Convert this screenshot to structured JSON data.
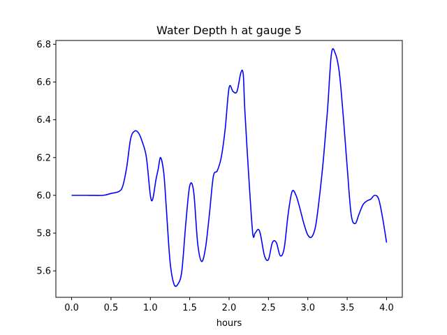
{
  "chart_data": {
    "type": "line",
    "title": "Water Depth h at gauge 5",
    "xlabel": "hours",
    "ylabel": "",
    "xlim": [
      -0.2,
      4.2
    ],
    "ylim": [
      5.46,
      6.82
    ],
    "xticks": [
      0.0,
      0.5,
      1.0,
      1.5,
      2.0,
      2.5,
      3.0,
      3.5,
      4.0
    ],
    "xtick_labels": [
      "0.0",
      "0.5",
      "1.0",
      "1.5",
      "2.0",
      "2.5",
      "3.0",
      "3.5",
      "4.0"
    ],
    "yticks": [
      5.6,
      5.8,
      6.0,
      6.2,
      6.4,
      6.6,
      6.8
    ],
    "ytick_labels": [
      "5.6",
      "5.8",
      "6.0",
      "6.2",
      "6.4",
      "6.6",
      "6.8"
    ],
    "grid": false,
    "series": [
      {
        "color": "#0000ff",
        "x": [
          0.0,
          0.2,
          0.4,
          0.5,
          0.6,
          0.65,
          0.7,
          0.75,
          0.8,
          0.85,
          0.9,
          0.95,
          1.0,
          1.03,
          1.07,
          1.1,
          1.13,
          1.17,
          1.2,
          1.25,
          1.3,
          1.35,
          1.4,
          1.45,
          1.5,
          1.55,
          1.6,
          1.65,
          1.7,
          1.75,
          1.8,
          1.85,
          1.9,
          1.95,
          2.0,
          2.05,
          2.1,
          2.15,
          2.18,
          2.2,
          2.25,
          2.3,
          2.33,
          2.37,
          2.4,
          2.45,
          2.5,
          2.55,
          2.6,
          2.65,
          2.7,
          2.75,
          2.8,
          2.85,
          2.9,
          2.95,
          3.0,
          3.05,
          3.1,
          3.15,
          3.2,
          3.25,
          3.3,
          3.35,
          3.4,
          3.45,
          3.5,
          3.55,
          3.6,
          3.65,
          3.7,
          3.75,
          3.8,
          3.85,
          3.9,
          3.95,
          4.0
        ],
        "y": [
          6.0,
          6.0,
          6.0,
          6.01,
          6.02,
          6.05,
          6.15,
          6.3,
          6.34,
          6.33,
          6.28,
          6.2,
          6.0,
          5.98,
          6.08,
          6.14,
          6.2,
          6.12,
          5.95,
          5.65,
          5.53,
          5.53,
          5.6,
          5.85,
          6.05,
          6.02,
          5.75,
          5.65,
          5.72,
          5.9,
          6.1,
          6.13,
          6.2,
          6.35,
          6.57,
          6.55,
          6.55,
          6.65,
          6.64,
          6.45,
          6.1,
          5.8,
          5.8,
          5.82,
          5.79,
          5.68,
          5.66,
          5.75,
          5.75,
          5.68,
          5.72,
          5.9,
          6.02,
          6.0,
          5.93,
          5.85,
          5.79,
          5.78,
          5.84,
          6.0,
          6.2,
          6.45,
          6.75,
          6.75,
          6.65,
          6.42,
          6.15,
          5.9,
          5.85,
          5.9,
          5.95,
          5.97,
          5.98,
          6.0,
          5.98,
          5.88,
          5.75
        ]
      }
    ]
  }
}
